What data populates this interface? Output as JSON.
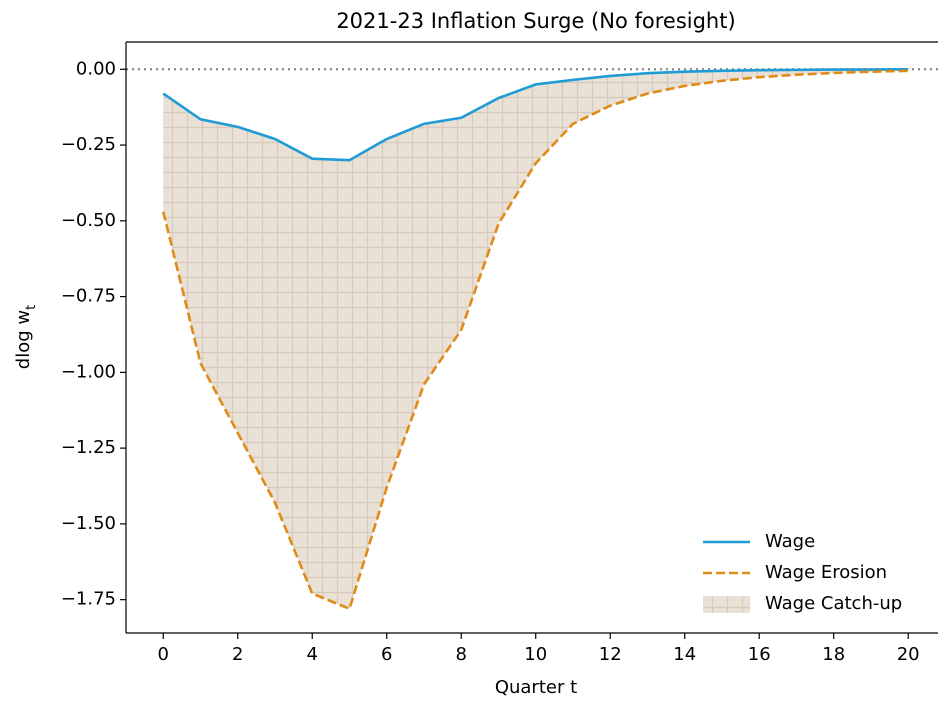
{
  "chart_data": {
    "type": "line",
    "title": "2021-23 Inflation Surge (No foresight)",
    "xlabel": "Quarter t",
    "ylabel": {
      "main": "dlog w",
      "sub": "t"
    },
    "x": [
      0,
      1,
      2,
      3,
      4,
      5,
      6,
      7,
      8,
      9,
      10,
      11,
      12,
      13,
      14,
      15,
      16,
      17,
      18,
      19,
      20
    ],
    "series": [
      {
        "name": "Wage",
        "color": "#1f9bd6",
        "dash": false,
        "values": [
          -0.08,
          -0.165,
          -0.19,
          -0.23,
          -0.295,
          -0.3,
          -0.23,
          -0.18,
          -0.16,
          -0.095,
          -0.05,
          -0.035,
          -0.022,
          -0.013,
          -0.008,
          -0.005,
          -0.003,
          -0.002,
          -0.001,
          -0.001,
          0
        ]
      },
      {
        "name": "Wage Erosion",
        "color": "#e08a17",
        "dash": true,
        "values": [
          -0.47,
          -0.97,
          -1.2,
          -1.43,
          -1.73,
          -1.78,
          -1.38,
          -1.04,
          -0.86,
          -0.51,
          -0.31,
          -0.18,
          -0.12,
          -0.08,
          -0.055,
          -0.038,
          -0.026,
          -0.018,
          -0.012,
          -0.008,
          -0.005
        ]
      }
    ],
    "fill": {
      "name": "Wage Catch-up",
      "color": "#e9e0d6",
      "hatch": "#d8cabb"
    },
    "hline": {
      "value": 0,
      "color": "#888888"
    },
    "xlim": [
      -1,
      20.8
    ],
    "ylim": [
      -1.86,
      0.09
    ],
    "xticks": [
      0,
      2,
      4,
      6,
      8,
      10,
      12,
      14,
      16,
      18,
      20
    ],
    "yticks": [
      {
        "value": 0,
        "label": "0.00"
      },
      {
        "value": -0.25,
        "label": "−0.25"
      },
      {
        "value": -0.5,
        "label": "−0.50"
      },
      {
        "value": -0.75,
        "label": "−0.75"
      },
      {
        "value": -1.0,
        "label": "−1.00"
      },
      {
        "value": -1.25,
        "label": "−1.25"
      },
      {
        "value": -1.5,
        "label": "−1.50"
      },
      {
        "value": -1.75,
        "label": "−1.75"
      }
    ],
    "legend": "lower right"
  }
}
